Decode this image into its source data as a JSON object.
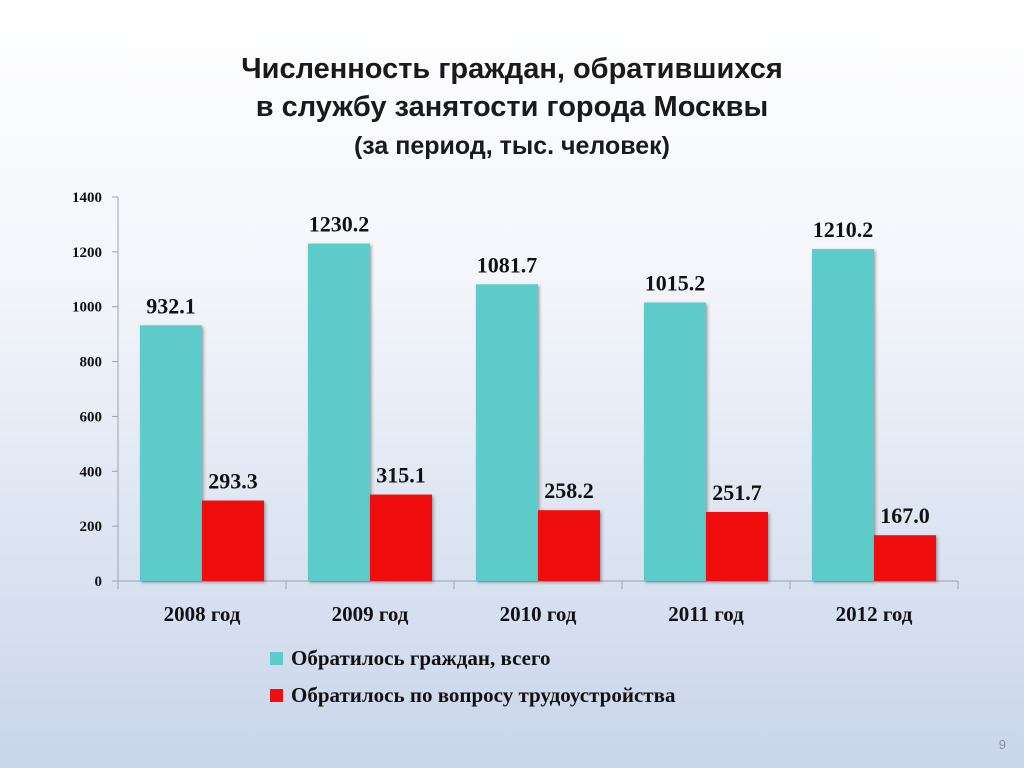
{
  "title": {
    "line1": "Численность граждан, обратившихся",
    "line2": "в службу занятости города Москвы",
    "line3": "(за период, тыс. человек)"
  },
  "chart_data": {
    "type": "bar",
    "categories": [
      "2008 год",
      "2009 год",
      "2010 год",
      "2011 год",
      "2012 год"
    ],
    "series": [
      {
        "name": "Обратилось граждан, всего",
        "color": "#5ccbca",
        "values": [
          932.1,
          1230.2,
          1081.7,
          1015.2,
          1210.2
        ],
        "labels": [
          "932.1",
          "1230.2",
          "1081.7",
          "1015.2",
          "1210.2"
        ]
      },
      {
        "name": "Обратилось по вопросу трудоустройства",
        "color": "#f00d0d",
        "values": [
          293.3,
          315.1,
          258.2,
          251.7,
          167.0
        ],
        "labels": [
          "293.3",
          "315.1",
          "258.2",
          "251.7",
          "167.0"
        ]
      }
    ],
    "ylim": [
      0,
      1400
    ],
    "yticks": [
      0,
      200,
      400,
      600,
      800,
      1000,
      1200,
      1400
    ],
    "grid": false,
    "legend_position": "bottom"
  },
  "legend": {
    "items": [
      {
        "label": "Обратилось граждан, всего",
        "color": "#5ccbca"
      },
      {
        "label": "Обратилось по вопросу трудоустройства",
        "color": "#f00d0d"
      }
    ]
  },
  "page_number": "9"
}
